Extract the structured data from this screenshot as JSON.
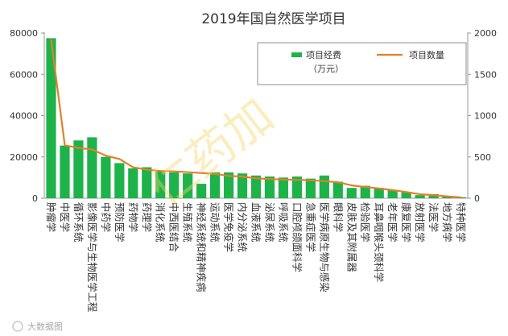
{
  "chart_data": {
    "type": "bar",
    "title": "2019年国自然医学项目",
    "categories": [
      "肿瘤学",
      "中医学",
      "循环系统",
      "影像医学与生物医学工程",
      "中药学",
      "预防医学",
      "药物学",
      "药理学",
      "消化系统",
      "中西医结合",
      "生殖系统",
      "神经系统和精神疾病",
      "运动系统",
      "医学免疫学",
      "内分泌系统",
      "血液系统",
      "泌尿系统",
      "呼吸系统",
      "口腔颅颌面科学",
      "急重症医学",
      "医学病原生物与感染",
      "眼科学",
      "皮肤及其附属器",
      "检验医学",
      "耳鼻咽喉头颈科学",
      "老年医学",
      "康复医学",
      "放射医学",
      "法医学",
      "地方病学",
      "特种医学"
    ],
    "series": [
      {
        "name": "项目经费（万元）",
        "axis": "left",
        "type": "bar",
        "color": "#1db34a",
        "values": [
          77500,
          25500,
          28000,
          29500,
          20000,
          17000,
          14500,
          15000,
          13000,
          12500,
          12000,
          7000,
          12500,
          12500,
          12000,
          11000,
          10500,
          10000,
          10500,
          9500,
          11000,
          8000,
          5000,
          6000,
          5000,
          4000,
          3000,
          1500,
          2000,
          1000,
          500
        ]
      },
      {
        "name": "项目数量",
        "axis": "right",
        "type": "line",
        "color": "#e3802a",
        "values": [
          1920,
          640,
          610,
          590,
          515,
          475,
          375,
          345,
          330,
          325,
          315,
          305,
          295,
          270,
          262,
          240,
          232,
          225,
          222,
          217,
          207,
          193,
          155,
          135,
          118,
          98,
          75,
          48,
          38,
          22,
          10
        ]
      }
    ],
    "ylim_left": [
      0,
      80000
    ],
    "yticks_left": [
      "0",
      "20000",
      "40000",
      "60000",
      "80000"
    ],
    "ylim_right": [
      0,
      2000
    ],
    "yticks_right": [
      "0",
      "500",
      "1000",
      "1500",
      "2000"
    ],
    "legend": {
      "bar_label_line1": "项目经费",
      "bar_label_line2": "（万元）",
      "line_label": "项目数量",
      "placement": "top-right"
    },
    "watermark_center": "仁药加",
    "watermark_corner": "大数据图"
  }
}
